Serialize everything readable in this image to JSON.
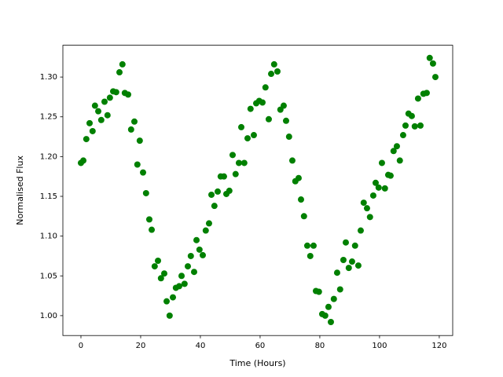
{
  "chart_data": {
    "type": "scatter",
    "x_label": "Time (Hours)",
    "y_label": "Normalised Flux",
    "color": "#008000",
    "x": [
      0,
      0.8,
      1.8,
      2.9,
      3.9,
      4.7,
      5.8,
      6.8,
      7.9,
      8.9,
      9.7,
      10.8,
      11.8,
      12.9,
      13.9,
      14.7,
      15.8,
      16.8,
      17.9,
      18.9,
      19.7,
      20.8,
      21.8,
      22.9,
      23.7,
      24.7,
      25.8,
      26.8,
      27.9,
      28.7,
      29.7,
      30.8,
      31.8,
      32.9,
      33.7,
      34.7,
      35.8,
      36.8,
      37.9,
      38.7,
      39.7,
      40.8,
      41.8,
      42.9,
      43.7,
      44.7,
      45.8,
      46.8,
      47.9,
      48.7,
      49.7,
      50.8,
      51.8,
      52.9,
      53.7,
      54.7,
      55.8,
      56.8,
      57.9,
      58.7,
      59.7,
      60.8,
      61.8,
      62.9,
      63.7,
      64.7,
      65.8,
      66.8,
      67.9,
      68.7,
      69.7,
      70.8,
      71.8,
      72.9,
      73.7,
      74.7,
      75.8,
      76.8,
      77.9,
      78.7,
      79.7,
      80.8,
      81.8,
      82.9,
      83.7,
      84.7,
      85.8,
      86.8,
      87.9,
      88.7,
      89.7,
      90.8,
      91.8,
      92.9,
      93.7,
      94.7,
      95.8,
      96.8,
      97.9,
      98.7,
      99.7,
      100.8,
      101.8,
      102.9,
      103.7,
      104.7,
      105.8,
      106.8,
      107.9,
      108.7,
      109.7,
      110.8,
      111.8,
      112.9,
      113.7,
      114.7,
      115.8,
      116.8,
      117.9,
      118.7
    ],
    "values": [
      1.192,
      1.195,
      1.222,
      1.242,
      1.232,
      1.264,
      1.257,
      1.246,
      1.269,
      1.252,
      1.274,
      1.282,
      1.281,
      1.306,
      1.316,
      1.28,
      1.278,
      1.234,
      1.244,
      1.19,
      1.22,
      1.18,
      1.154,
      1.121,
      1.108,
      1.062,
      1.069,
      1.047,
      1.053,
      1.018,
      1.0,
      1.023,
      1.035,
      1.037,
      1.05,
      1.04,
      1.062,
      1.075,
      1.055,
      1.095,
      1.083,
      1.076,
      1.107,
      1.116,
      1.152,
      1.138,
      1.156,
      1.175,
      1.175,
      1.153,
      1.157,
      1.202,
      1.178,
      1.192,
      1.237,
      1.192,
      1.223,
      1.26,
      1.227,
      1.267,
      1.27,
      1.268,
      1.287,
      1.247,
      1.304,
      1.316,
      1.307,
      1.259,
      1.264,
      1.245,
      1.225,
      1.195,
      1.169,
      1.173,
      1.146,
      1.125,
      1.088,
      1.075,
      1.088,
      1.031,
      1.03,
      1.002,
      1.0,
      1.011,
      0.992,
      1.021,
      1.054,
      1.033,
      1.07,
      1.092,
      1.06,
      1.068,
      1.088,
      1.063,
      1.107,
      1.142,
      1.135,
      1.124,
      1.151,
      1.167,
      1.161,
      1.192,
      1.16,
      1.177,
      1.176,
      1.207,
      1.213,
      1.195,
      1.227,
      1.239,
      1.254,
      1.251,
      1.238,
      1.273,
      1.239,
      1.279,
      1.28,
      1.324,
      1.317,
      1.3
    ],
    "xlim": [
      -6.05,
      124.5
    ],
    "ylim": [
      0.975,
      1.34
    ],
    "xticks": [
      0,
      20,
      40,
      60,
      80,
      100,
      120
    ],
    "yticks": [
      {
        "value": 1.0,
        "label": "1.00"
      },
      {
        "value": 1.05,
        "label": "1.05"
      },
      {
        "value": 1.1,
        "label": "1.10"
      },
      {
        "value": 1.15,
        "label": "1.15"
      },
      {
        "value": 1.2,
        "label": "1.20"
      },
      {
        "value": 1.25,
        "label": "1.25"
      },
      {
        "value": 1.3,
        "label": "1.30"
      }
    ]
  }
}
